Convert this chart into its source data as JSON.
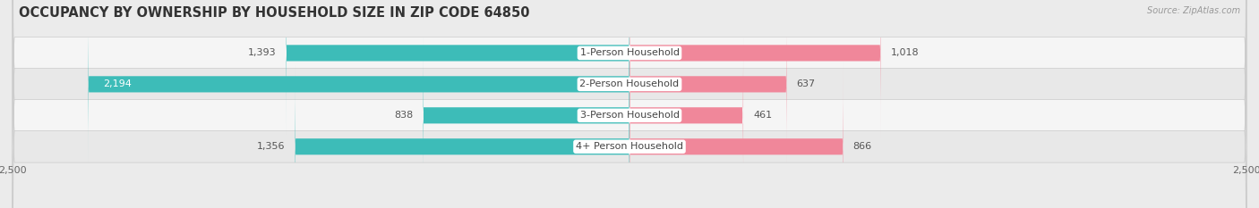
{
  "title": "OCCUPANCY BY OWNERSHIP BY HOUSEHOLD SIZE IN ZIP CODE 64850",
  "source": "Source: ZipAtlas.com",
  "categories": [
    "1-Person Household",
    "2-Person Household",
    "3-Person Household",
    "4+ Person Household"
  ],
  "owner_values": [
    1393,
    2194,
    838,
    1356
  ],
  "renter_values": [
    1018,
    637,
    461,
    866
  ],
  "owner_color": "#3dbcb8",
  "renter_color": "#f0879a",
  "background_color": "#ebebeb",
  "row_colors": [
    "#f5f5f5",
    "#e8e8e8",
    "#f5f5f5",
    "#e8e8e8"
  ],
  "axis_max": 2500,
  "title_fontsize": 10.5,
  "label_fontsize": 8,
  "tick_fontsize": 8,
  "legend_fontsize": 8,
  "bar_height": 0.52
}
